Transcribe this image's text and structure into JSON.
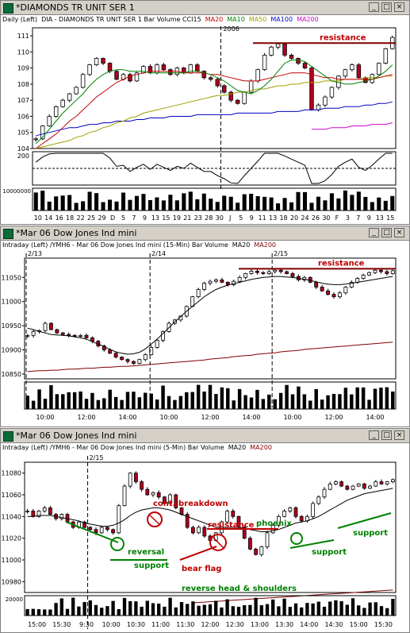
{
  "panels": [
    {
      "title": "*DIAMONDS TR UNIT SER 1",
      "info": [
        {
          "text": "Daily  (Left)",
          "color": "#000000"
        },
        {
          "text": "DIA - DIAMONDS TR UNIT SER 1  Bar  Volume  CCI15",
          "color": "#000000"
        },
        {
          "text": "MA20",
          "color": "#c00000"
        },
        {
          "text": "MA10",
          "color": "#008000"
        },
        {
          "text": "MA50",
          "color": "#a0a000"
        },
        {
          "text": "MA100",
          "color": "#0000c0"
        },
        {
          "text": "MA200",
          "color": "#d000d0"
        }
      ],
      "buttons": [
        "_",
        "□",
        "×"
      ]
    },
    {
      "title": "*Mar 06  Dow Jones Ind mini",
      "info": [
        {
          "text": "Intraday  (Left)  /YMH6 - Mar 06  Dow Jones Ind mini  (15-Min)  Bar  Volume",
          "color": "#000000"
        },
        {
          "text": "MA20",
          "color": "#000000"
        },
        {
          "text": "MA200",
          "color": "#800000"
        }
      ],
      "buttons": [
        "_",
        "□",
        "×"
      ]
    },
    {
      "title": "*Mar 06  Dow Jones Ind mini",
      "info": [
        {
          "text": "Intraday  (Left)  /YMH6 - Mar 06  Dow Jones Ind mini  (5-Min)  Bar  Volume",
          "color": "#000000"
        },
        {
          "text": "MA20",
          "color": "#000000"
        },
        {
          "text": "MA200",
          "color": "#800000"
        }
      ],
      "buttons": [
        "_",
        "□",
        "×"
      ]
    }
  ],
  "chart_data": [
    {
      "type": "candlestick",
      "title": "*DIAMONDS TR UNIT SER 1",
      "interval": "Daily",
      "xlabels": [
        "10",
        "14",
        "16",
        "18",
        "22",
        "25",
        "29",
        "D",
        "5",
        "7",
        "9",
        "13",
        "15",
        "19",
        "21",
        "23",
        "28",
        "30",
        "J",
        "5",
        "9",
        "11",
        "13",
        "18",
        "20",
        "24",
        "26",
        "30",
        "F",
        "3",
        "7",
        "9",
        "13",
        "15"
      ],
      "separator_label": "2006",
      "ylabels": [
        "104",
        "105",
        "106",
        "107",
        "108",
        "109",
        "110",
        "111"
      ],
      "ylim": [
        104,
        111.5
      ],
      "close": [
        104.6,
        105.4,
        106.0,
        106.6,
        107.0,
        107.4,
        107.8,
        108.6,
        109.2,
        109.6,
        109.3,
        108.8,
        108.3,
        108.6,
        108.2,
        108.7,
        109.1,
        108.7,
        109.2,
        108.9,
        108.6,
        109.0,
        108.7,
        109.2,
        108.8,
        108.4,
        108.3,
        107.9,
        107.5,
        107.0,
        106.8,
        107.5,
        108.2,
        108.9,
        109.8,
        110.3,
        110.5,
        109.8,
        109.6,
        109.3,
        109.0,
        106.4,
        106.7,
        107.2,
        107.8,
        108.5,
        108.9,
        109.2,
        108.4,
        108.1,
        108.6,
        109.3,
        110.2,
        110.9
      ],
      "ma10": [
        104.3,
        104.7,
        105.2,
        105.7,
        106.2,
        106.6,
        107.0,
        107.4,
        107.9,
        108.3,
        108.6,
        108.8,
        108.9,
        108.9,
        108.8,
        108.8,
        108.8,
        108.7,
        108.7,
        108.7,
        108.7,
        108.7,
        108.7,
        108.8,
        108.8,
        108.7,
        108.6,
        108.4,
        108.2,
        107.9,
        107.6,
        107.5,
        107.4,
        107.6,
        107.9,
        108.3,
        108.8,
        109.3,
        109.5,
        109.5,
        109.4,
        109.1,
        108.8,
        108.5,
        108.2,
        108.1,
        108.0,
        108.0,
        108.1,
        108.2,
        108.3,
        108.5,
        108.8,
        109.2
      ],
      "ma20": [
        104.0,
        104.3,
        104.6,
        104.9,
        105.3,
        105.7,
        106.0,
        106.4,
        106.8,
        107.2,
        107.5,
        107.8,
        108.1,
        108.3,
        108.5,
        108.6,
        108.7,
        108.8,
        108.8,
        108.8,
        108.8,
        108.8,
        108.7,
        108.7,
        108.7,
        108.7,
        108.6,
        108.6,
        108.5,
        108.4,
        108.3,
        108.2,
        108.2,
        108.2,
        108.3,
        108.4,
        108.5,
        108.6,
        108.7,
        108.7,
        108.7,
        108.6,
        108.5,
        108.4,
        108.4,
        108.3,
        108.3,
        108.3,
        108.3,
        108.3,
        108.3,
        108.4,
        108.5,
        108.6
      ],
      "ma50": [
        104.0,
        104.1,
        104.2,
        104.3,
        104.4,
        104.5,
        104.7,
        104.8,
        105.0,
        105.1,
        105.3,
        105.4,
        105.6,
        105.7,
        105.9,
        106.0,
        106.2,
        106.3,
        106.4,
        106.5,
        106.6,
        106.7,
        106.8,
        106.9,
        107.0,
        107.1,
        107.2,
        107.3,
        107.3,
        107.4,
        107.5,
        107.5,
        107.6,
        107.7,
        107.7,
        107.8,
        107.9,
        107.9,
        108.0,
        108.0,
        108.1,
        108.1,
        108.1,
        108.2,
        108.2,
        108.2,
        108.3,
        108.3,
        108.3,
        108.4,
        108.4,
        108.4,
        108.5,
        108.5
      ],
      "ma100": [
        104.8,
        104.9,
        105.0,
        105.1,
        105.2,
        105.3,
        105.3,
        105.4,
        105.5,
        105.5,
        105.6,
        105.6,
        105.7,
        105.7,
        105.7,
        105.8,
        105.8,
        105.9,
        105.9,
        105.9,
        106.0,
        106.0,
        106.0,
        106.0,
        106.1,
        106.1,
        106.1,
        106.1,
        106.1,
        106.1,
        106.2,
        106.2,
        106.2,
        106.2,
        106.2,
        106.2,
        106.3,
        106.3,
        106.3,
        106.3,
        106.4,
        106.4,
        106.4,
        106.5,
        106.5,
        106.5,
        106.6,
        106.6,
        106.6,
        106.7,
        106.7,
        106.8,
        106.8,
        106.9
      ],
      "ma200_start": 41,
      "ma200": [
        105.2,
        105.2,
        105.2,
        105.3,
        105.3,
        105.3,
        105.4,
        105.4,
        105.4,
        105.5,
        105.5,
        105.5,
        105.6
      ],
      "cci_ylabel": "200",
      "volume_ylabel": "10000000",
      "annotations": [
        {
          "text": "resistance",
          "type": "hline",
          "y": 110.55
        }
      ]
    },
    {
      "type": "candlestick",
      "title": "*Mar 06  Dow Jones Ind mini",
      "interval": "15-Min",
      "xlabels": [
        "10:00",
        "12:00",
        "14:00",
        "10:00",
        "12:00",
        "14:00",
        "10:00",
        "12:00",
        "14:00"
      ],
      "date_labels": [
        "2/13",
        "2/14",
        "2/15"
      ],
      "ylabels": [
        "10850",
        "10900",
        "10950",
        "11000",
        "11050"
      ],
      "ylim": [
        10840,
        11090
      ],
      "close": [
        10930,
        10938,
        10940,
        10955,
        10942,
        10935,
        10932,
        10930,
        10928,
        10930,
        10925,
        10918,
        10908,
        10900,
        10893,
        10885,
        10880,
        10876,
        10872,
        10880,
        10890,
        10905,
        10920,
        10938,
        10955,
        10962,
        10970,
        10990,
        11010,
        11025,
        11038,
        11042,
        11045,
        11040,
        11035,
        11042,
        11050,
        11058,
        11063,
        11060,
        11058,
        11062,
        11065,
        11062,
        11058,
        11052,
        11045,
        11050,
        11040,
        11030,
        11022,
        11015,
        11010,
        11018,
        11030,
        11040,
        11048,
        11055,
        11060,
        11065,
        11062,
        11058,
        11064
      ],
      "ma20": [
        10945,
        10942,
        10938,
        10935,
        10932,
        10931,
        10930,
        10929,
        10927,
        10925,
        10922,
        10917,
        10912,
        10907,
        10901,
        10896,
        10893,
        10891,
        10892,
        10895,
        10902,
        10912,
        10922,
        10934,
        10946,
        10958,
        10969,
        10980,
        10990,
        11000,
        11010,
        11018,
        11025,
        11030,
        11034,
        11037,
        11040,
        11043,
        11046,
        11048,
        11050,
        11051,
        11052,
        11052,
        11051,
        11050,
        11048,
        11046,
        11044,
        11041,
        11038,
        11036,
        11035,
        11035,
        11036,
        11038,
        11040,
        11042,
        11044,
        11046,
        11048,
        11050,
        11052
      ],
      "ma200": [
        10855,
        10856,
        10857,
        10857,
        10858,
        10858,
        10859,
        10860,
        10860,
        10861,
        10862,
        10862,
        10863,
        10864,
        10864,
        10865,
        10866,
        10866,
        10867,
        10868,
        10869,
        10870,
        10871,
        10872,
        10873,
        10874,
        10875,
        10876,
        10877,
        10878,
        10879,
        10881,
        10882,
        10883,
        10884,
        10886,
        10887,
        10888,
        10889,
        10891,
        10892,
        10893,
        10894,
        10896,
        10897,
        10898,
        10899,
        10901,
        10902,
        10903,
        10904,
        10905,
        10906,
        10907,
        10908,
        10909,
        10910,
        10911,
        10912,
        10913,
        10914,
        10915,
        10916
      ],
      "annotations": [
        {
          "text": "resistance",
          "type": "hline",
          "y": 11068
        }
      ]
    },
    {
      "type": "candlestick",
      "title": "*Mar 06  Dow Jones Ind mini",
      "interval": "5-Min",
      "xlabels": [
        "15:00",
        "15:30",
        "9:30",
        "10:00",
        "10:30",
        "11:00",
        "11:30",
        "12:00",
        "12:30",
        "13:00",
        "13:30",
        "14:00",
        "14:30",
        "15:00",
        "15:30"
      ],
      "date_labels": [
        "2/15"
      ],
      "ylabels": [
        "10980",
        "11000",
        "11020",
        "11040",
        "11060",
        "11080"
      ],
      "ylim": [
        10970,
        11090
      ],
      "close": [
        11045,
        11040,
        11045,
        11048,
        11042,
        11038,
        11042,
        11035,
        11030,
        11035,
        11030,
        11028,
        11025,
        11030,
        11028,
        11025,
        11050,
        11068,
        11080,
        11072,
        11065,
        11060,
        11062,
        11058,
        11052,
        11060,
        11048,
        11042,
        11030,
        11025,
        11030,
        11022,
        11018,
        11025,
        11035,
        11045,
        11040,
        11030,
        11020,
        11010,
        11005,
        11012,
        11025,
        11032,
        11040,
        11045,
        11048,
        11040,
        11036,
        11040,
        11052,
        11058,
        11065,
        11070,
        11072,
        11068,
        11065,
        11068,
        11070,
        11066,
        11068,
        11072,
        11070,
        11072,
        11074
      ],
      "ma20": [
        11040,
        11040,
        11041,
        11041,
        11041,
        11040,
        11039,
        11038,
        11037,
        11036,
        11034,
        11033,
        11032,
        11031,
        11031,
        11032,
        11034,
        11037,
        11041,
        11044,
        11046,
        11047,
        11048,
        11048,
        11047,
        11046,
        11044,
        11042,
        11040,
        11038,
        11036,
        11034,
        11032,
        11030,
        11030,
        11030,
        11030,
        11030,
        11029,
        11028,
        11027,
        11026,
        11026,
        11027,
        11028,
        11030,
        11032,
        11034,
        11035,
        11036,
        11038,
        11040,
        11043,
        11046,
        11049,
        11052,
        11055,
        11057,
        11059,
        11061,
        11062,
        11063,
        11064,
        11065,
        11066
      ],
      "ma200": [
        10958,
        10958,
        10958,
        10958,
        10958,
        10958,
        10958,
        10958,
        10958,
        10958,
        10958,
        10958,
        10958,
        10958,
        10958,
        10958,
        10958,
        10958,
        10958,
        10958,
        10958,
        10958,
        10958,
        10958,
        10958,
        10958,
        10958,
        10958,
        10958,
        10958,
        10958,
        10958,
        10958,
        10958,
        10958,
        10958,
        10958,
        10958,
        10958,
        10958,
        10958,
        10958,
        10958,
        10958,
        10958,
        10958,
        10958,
        10958,
        10958,
        10958,
        10958,
        10958,
        10958,
        10958,
        10958,
        10958,
        10958,
        10958,
        10958,
        10958,
        10958,
        10958,
        10958,
        10958,
        10958
      ],
      "volume_ylabel": "20000",
      "annotations": [
        {
          "text": "cont. breakdown",
          "color": "#c00000"
        },
        {
          "text": "resistance",
          "color": "#c00000"
        },
        {
          "text": "bear flag",
          "color": "#c00000"
        },
        {
          "text": "reversal",
          "color": "#008000"
        },
        {
          "text": "support",
          "color": "#008000"
        },
        {
          "text": "phoenix",
          "color": "#008000"
        },
        {
          "text": "support",
          "color": "#008000"
        },
        {
          "text": "reverse head & shoulders",
          "color": "#008000"
        },
        {
          "text": "support",
          "color": "#008000"
        }
      ]
    }
  ]
}
